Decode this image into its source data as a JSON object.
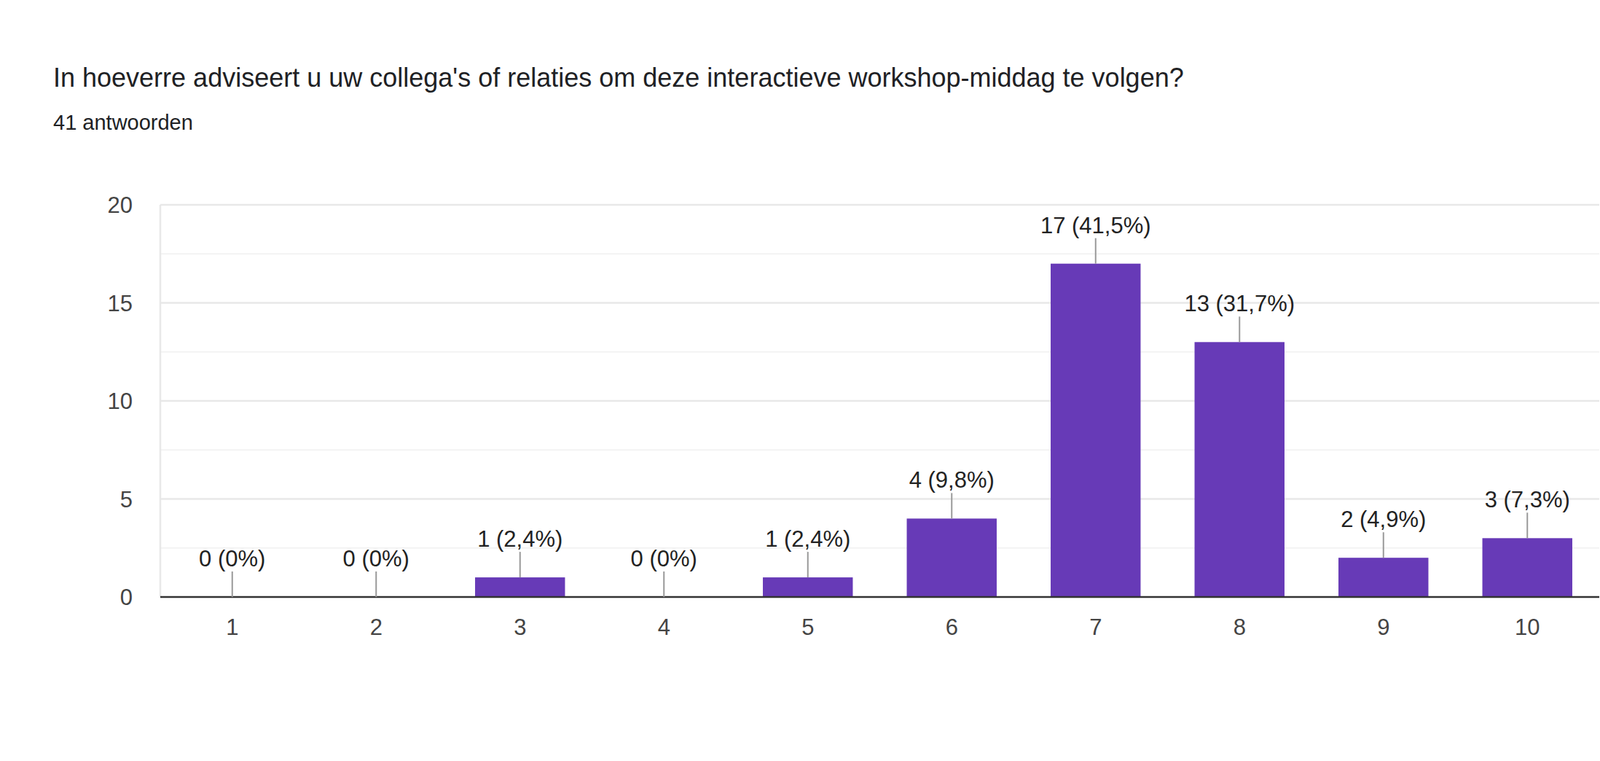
{
  "chart_data": {
    "type": "bar",
    "title": "In hoeverre adviseert u uw collega's of relaties om deze interactieve workshop-middag te volgen?",
    "subtitle": "41 antwoorden",
    "categories": [
      "1",
      "2",
      "3",
      "4",
      "5",
      "6",
      "7",
      "8",
      "9",
      "10"
    ],
    "values": [
      0,
      0,
      1,
      0,
      1,
      4,
      17,
      13,
      2,
      3
    ],
    "value_labels": [
      "0 (0%)",
      "0 (0%)",
      "1 (2,4%)",
      "0 (0%)",
      "1 (2,4%)",
      "4 (9,8%)",
      "17 (41,5%)",
      "13 (31,7%)",
      "2 (4,9%)",
      "3 (7,3%)"
    ],
    "color": "#673ab7",
    "ylim": [
      0,
      20
    ],
    "yticks": [
      0,
      5,
      10,
      15,
      20
    ],
    "grid": true,
    "data_labels": true
  }
}
